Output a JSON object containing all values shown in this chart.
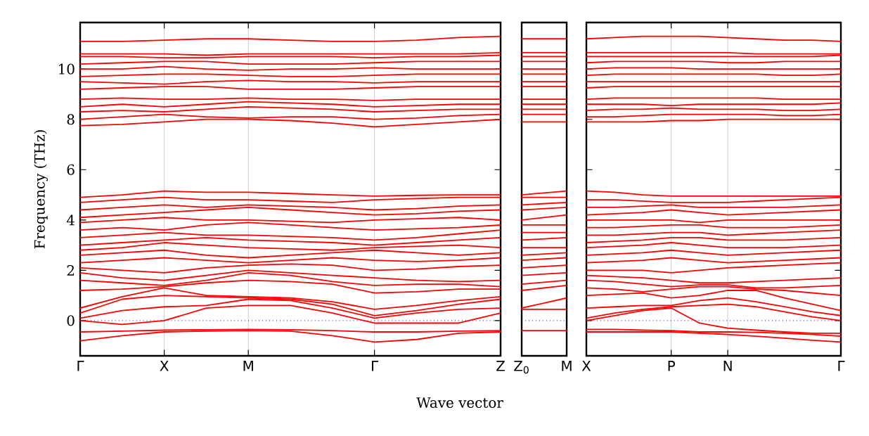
{
  "chart_data": [
    {
      "type": "line",
      "color": "#ff0000",
      "ylabel": "Frequency (THz)",
      "xlabel": "Wave vector",
      "grid": "x",
      "ylim": [
        -1.4,
        11.85
      ],
      "yticks": [
        0,
        2,
        4,
        6,
        8,
        10
      ],
      "categories": [
        "Γ",
        null,
        "X",
        null,
        "M",
        null,
        null,
        "Γ",
        null,
        null,
        "Z"
      ],
      "ref_lines": [
        {
          "axis": "y",
          "value": 0,
          "color": "#0000ff",
          "line_style": "dotted"
        }
      ],
      "series": [
        {
          "values": [
            -0.8,
            -0.6,
            -0.45,
            -0.42,
            -0.4,
            -0.42,
            -0.6,
            -0.85,
            -0.75,
            -0.5,
            -0.45
          ]
        },
        {
          "values": [
            -0.45,
            -0.42,
            -0.38,
            -0.36,
            -0.35,
            -0.36,
            -0.4,
            -0.45,
            -0.45,
            -0.42,
            -0.4
          ]
        },
        {
          "values": [
            0,
            -0.15,
            0,
            0.5,
            0.6,
            0.6,
            0.3,
            -0.1,
            -0.1,
            -0.1,
            0.3
          ]
        },
        {
          "values": [
            0.1,
            0.4,
            0.55,
            0.6,
            0.85,
            0.8,
            0.5,
            0.1,
            0.3,
            0.45,
            0.5
          ]
        },
        {
          "values": [
            0.3,
            0.85,
            1.0,
            0.95,
            0.9,
            0.85,
            0.65,
            0.2,
            0.4,
            0.65,
            0.85
          ]
        },
        {
          "values": [
            0.5,
            0.95,
            1.3,
            1.0,
            0.95,
            0.9,
            0.75,
            0.45,
            0.6,
            0.8,
            0.95
          ]
        },
        {
          "values": [
            1.2,
            1.25,
            1.35,
            1.5,
            1.6,
            1.55,
            1.45,
            1.1,
            1.15,
            1.25,
            1.25
          ]
        },
        {
          "values": [
            1.6,
            1.5,
            1.4,
            1.6,
            1.9,
            1.8,
            1.55,
            1.4,
            1.45,
            1.45,
            1.35
          ]
        },
        {
          "values": [
            1.9,
            1.7,
            1.6,
            1.8,
            2.0,
            1.9,
            1.8,
            1.7,
            1.6,
            1.55,
            1.6
          ]
        },
        {
          "values": [
            2.1,
            2.0,
            1.9,
            2.1,
            2.2,
            2.25,
            2.2,
            2.0,
            2.05,
            2.15,
            2.2
          ]
        },
        {
          "values": [
            2.3,
            2.4,
            2.5,
            2.4,
            2.3,
            2.4,
            2.5,
            2.4,
            2.35,
            2.4,
            2.5
          ]
        },
        {
          "values": [
            2.6,
            2.7,
            2.8,
            2.6,
            2.5,
            2.6,
            2.7,
            2.8,
            2.7,
            2.6,
            2.7
          ]
        },
        {
          "values": [
            2.8,
            2.9,
            3.1,
            3.0,
            2.9,
            2.85,
            2.8,
            2.9,
            2.95,
            3.0,
            2.9
          ]
        },
        {
          "values": [
            3.0,
            3.1,
            3.2,
            3.3,
            3.2,
            3.15,
            3.1,
            3.0,
            3.1,
            3.2,
            3.3
          ]
        },
        {
          "values": [
            3.3,
            3.4,
            3.5,
            3.4,
            3.4,
            3.35,
            3.3,
            3.2,
            3.3,
            3.45,
            3.6
          ]
        },
        {
          "values": [
            3.6,
            3.7,
            3.6,
            3.8,
            3.9,
            3.8,
            3.7,
            3.6,
            3.65,
            3.7,
            3.8
          ]
        },
        {
          "values": [
            3.9,
            4.0,
            4.1,
            4.0,
            4.0,
            3.95,
            3.9,
            4.0,
            4.05,
            4.1,
            4.0
          ]
        },
        {
          "values": [
            4.1,
            4.2,
            4.3,
            4.4,
            4.5,
            4.4,
            4.3,
            4.2,
            4.25,
            4.35,
            4.4
          ]
        },
        {
          "values": [
            4.4,
            4.5,
            4.6,
            4.5,
            4.6,
            4.55,
            4.5,
            4.4,
            4.45,
            4.55,
            4.6
          ]
        },
        {
          "values": [
            4.7,
            4.8,
            4.9,
            4.8,
            4.8,
            4.75,
            4.7,
            4.8,
            4.85,
            4.9,
            4.9
          ]
        },
        {
          "values": [
            4.9,
            5.0,
            5.15,
            5.1,
            5.1,
            5.05,
            5.0,
            4.95,
            4.98,
            5.0,
            5.0
          ]
        },
        {
          "values": [
            7.75,
            7.8,
            7.9,
            8.0,
            8.0,
            7.95,
            7.85,
            7.7,
            7.8,
            7.9,
            8.0
          ]
        },
        {
          "values": [
            8.0,
            8.1,
            8.2,
            8.1,
            8.05,
            8.1,
            8.1,
            8.0,
            8.05,
            8.15,
            8.2
          ]
        },
        {
          "values": [
            8.3,
            8.35,
            8.3,
            8.4,
            8.5,
            8.45,
            8.4,
            8.3,
            8.35,
            8.4,
            8.4
          ]
        },
        {
          "values": [
            8.5,
            8.6,
            8.5,
            8.6,
            8.7,
            8.65,
            8.6,
            8.5,
            8.55,
            8.6,
            8.6
          ]
        },
        {
          "values": [
            8.8,
            8.85,
            8.8,
            8.8,
            8.85,
            8.8,
            8.8,
            8.75,
            8.8,
            8.8,
            8.8
          ]
        },
        {
          "values": [
            9.2,
            9.25,
            9.3,
            9.3,
            9.2,
            9.2,
            9.2,
            9.25,
            9.3,
            9.3,
            9.3
          ]
        },
        {
          "values": [
            9.5,
            9.45,
            9.4,
            9.5,
            9.55,
            9.5,
            9.5,
            9.45,
            9.5,
            9.5,
            9.5
          ]
        },
        {
          "values": [
            9.7,
            9.75,
            9.8,
            9.8,
            9.75,
            9.7,
            9.7,
            9.75,
            9.8,
            9.8,
            9.8
          ]
        },
        {
          "values": [
            10.0,
            10.0,
            10.1,
            10.0,
            9.95,
            10.0,
            10.0,
            10.05,
            10.0,
            10.0,
            10.0
          ]
        },
        {
          "values": [
            10.2,
            10.25,
            10.3,
            10.3,
            10.2,
            10.2,
            10.2,
            10.25,
            10.3,
            10.3,
            10.3
          ]
        },
        {
          "values": [
            10.5,
            10.5,
            10.45,
            10.45,
            10.5,
            10.5,
            10.5,
            10.45,
            10.5,
            10.5,
            10.55
          ]
        },
        {
          "values": [
            10.6,
            10.6,
            10.6,
            10.55,
            10.6,
            10.6,
            10.6,
            10.6,
            10.6,
            10.6,
            10.65
          ]
        },
        {
          "values": [
            11.1,
            11.1,
            11.15,
            11.2,
            11.2,
            11.15,
            11.1,
            11.1,
            11.15,
            11.25,
            11.3
          ]
        }
      ]
    },
    {
      "type": "line",
      "color": "#ff0000",
      "tick_labels": "x",
      "ylim": [
        -1.4,
        11.85
      ],
      "categories": [
        "Z$_{0}$",
        "M"
      ],
      "ref_lines": [
        {
          "axis": "y",
          "value": 0,
          "color": "#0000ff",
          "line_style": "dotted"
        }
      ],
      "series": [
        {
          "values": [
            -0.4,
            -0.4
          ]
        },
        {
          "values": [
            0.45,
            0.45
          ]
        },
        {
          "values": [
            0.5,
            0.9
          ]
        },
        {
          "values": [
            1.2,
            1.4
          ]
        },
        {
          "values": [
            1.45,
            1.6
          ]
        },
        {
          "values": [
            1.8,
            1.9
          ]
        },
        {
          "values": [
            2.1,
            2.2
          ]
        },
        {
          "values": [
            2.4,
            2.5
          ]
        },
        {
          "values": [
            2.6,
            2.7
          ]
        },
        {
          "values": [
            2.9,
            2.9
          ]
        },
        {
          "values": [
            3.2,
            3.3
          ]
        },
        {
          "values": [
            3.5,
            3.5
          ]
        },
        {
          "values": [
            3.8,
            3.8
          ]
        },
        {
          "values": [
            4.0,
            4.2
          ]
        },
        {
          "values": [
            4.4,
            4.5
          ]
        },
        {
          "values": [
            4.6,
            4.7
          ]
        },
        {
          "values": [
            4.9,
            4.9
          ]
        },
        {
          "values": [
            5.0,
            5.15
          ]
        },
        {
          "values": [
            7.9,
            7.9
          ]
        },
        {
          "values": [
            8.2,
            8.2
          ]
        },
        {
          "values": [
            8.4,
            8.4
          ]
        },
        {
          "values": [
            8.6,
            8.6
          ]
        },
        {
          "values": [
            8.8,
            8.8
          ]
        },
        {
          "values": [
            9.3,
            9.3
          ]
        },
        {
          "values": [
            9.5,
            9.5
          ]
        },
        {
          "values": [
            9.8,
            9.8
          ]
        },
        {
          "values": [
            10.0,
            10.0
          ]
        },
        {
          "values": [
            10.3,
            10.3
          ]
        },
        {
          "values": [
            10.5,
            10.5
          ]
        },
        {
          "values": [
            10.65,
            10.65
          ]
        },
        {
          "values": [
            11.2,
            11.2
          ]
        }
      ]
    },
    {
      "type": "line",
      "color": "#ff0000",
      "grid": "x",
      "tick_labels": "x",
      "ylim": [
        -1.4,
        11.85
      ],
      "yticks": [
        0,
        2,
        4,
        6,
        8,
        10
      ],
      "categories": [
        "X",
        null,
        null,
        "P",
        null,
        "N",
        null,
        null,
        null,
        "Γ"
      ],
      "ref_lines": [
        {
          "axis": "y",
          "value": 0,
          "color": "#0000ff",
          "line_style": "dotted"
        }
      ],
      "series": [
        {
          "values": [
            -0.45,
            -0.45,
            -0.45,
            -0.45,
            -0.5,
            -0.55,
            -0.62,
            -0.7,
            -0.78,
            -0.85
          ]
        },
        {
          "values": [
            -0.35,
            -0.35,
            -0.38,
            -0.4,
            -0.45,
            -0.45,
            -0.47,
            -0.5,
            -0.55,
            -0.62
          ]
        },
        {
          "values": [
            0,
            0.2,
            0.4,
            0.5,
            -0.1,
            -0.3,
            -0.38,
            -0.45,
            -0.5,
            -0.5
          ]
        },
        {
          "values": [
            0.1,
            0.3,
            0.45,
            0.55,
            0.6,
            0.65,
            0.55,
            0.35,
            0.15,
            0
          ]
        },
        {
          "values": [
            0.5,
            0.55,
            0.6,
            0.6,
            0.8,
            0.9,
            0.75,
            0.55,
            0.35,
            0.2
          ]
        },
        {
          "values": [
            1.0,
            1.05,
            1.1,
            0.9,
            1.0,
            1.2,
            1.2,
            0.9,
            0.65,
            0.4
          ]
        },
        {
          "values": [
            1.3,
            1.25,
            1.15,
            1.25,
            1.35,
            1.35,
            1.25,
            1.2,
            1.1,
            1.0
          ]
        },
        {
          "values": [
            1.6,
            1.55,
            1.45,
            1.35,
            1.42,
            1.42,
            1.3,
            1.3,
            1.35,
            1.4
          ]
        },
        {
          "values": [
            1.8,
            1.75,
            1.7,
            1.6,
            1.5,
            1.5,
            1.55,
            1.6,
            1.65,
            1.7
          ]
        },
        {
          "values": [
            2.0,
            2.0,
            2.0,
            1.9,
            2.0,
            2.1,
            2.15,
            2.2,
            2.25,
            2.3
          ]
        },
        {
          "values": [
            2.3,
            2.35,
            2.4,
            2.5,
            2.4,
            2.3,
            2.35,
            2.4,
            2.45,
            2.5
          ]
        },
        {
          "values": [
            2.6,
            2.65,
            2.7,
            2.8,
            2.7,
            2.6,
            2.65,
            2.7,
            2.75,
            2.8
          ]
        },
        {
          "values": [
            2.9,
            2.95,
            3.0,
            3.1,
            3.0,
            2.9,
            2.9,
            2.9,
            2.95,
            3.0
          ]
        },
        {
          "values": [
            3.1,
            3.15,
            3.2,
            3.3,
            3.3,
            3.2,
            3.2,
            3.2,
            3.25,
            3.3
          ]
        },
        {
          "values": [
            3.4,
            3.4,
            3.45,
            3.5,
            3.5,
            3.4,
            3.45,
            3.5,
            3.55,
            3.6
          ]
        },
        {
          "values": [
            3.7,
            3.7,
            3.75,
            3.8,
            3.8,
            3.7,
            3.7,
            3.7,
            3.75,
            3.8
          ]
        },
        {
          "values": [
            4.0,
            4.0,
            4.0,
            4.0,
            3.9,
            4.0,
            4.0,
            4.0,
            4.0,
            4.0
          ]
        },
        {
          "values": [
            4.2,
            4.25,
            4.3,
            4.4,
            4.3,
            4.2,
            4.25,
            4.3,
            4.35,
            4.4
          ]
        },
        {
          "values": [
            4.5,
            4.5,
            4.55,
            4.6,
            4.5,
            4.5,
            4.5,
            4.5,
            4.55,
            4.6
          ]
        },
        {
          "values": [
            4.8,
            4.8,
            4.75,
            4.7,
            4.7,
            4.7,
            4.75,
            4.8,
            4.85,
            4.9
          ]
        },
        {
          "values": [
            5.15,
            5.1,
            5.0,
            4.95,
            4.95,
            4.95,
            4.95,
            4.95,
            4.95,
            4.95
          ]
        },
        {
          "values": [
            7.9,
            7.9,
            7.9,
            7.95,
            7.95,
            8.0,
            8.0,
            8.0,
            8.0,
            8.0
          ]
        },
        {
          "values": [
            8.1,
            8.1,
            8.15,
            8.2,
            8.2,
            8.2,
            8.2,
            8.15,
            8.15,
            8.2
          ]
        },
        {
          "values": [
            8.35,
            8.4,
            8.4,
            8.45,
            8.4,
            8.4,
            8.4,
            8.35,
            8.35,
            8.4
          ]
        },
        {
          "values": [
            8.6,
            8.6,
            8.6,
            8.55,
            8.6,
            8.6,
            8.6,
            8.6,
            8.6,
            8.65
          ]
        },
        {
          "values": [
            8.8,
            8.85,
            8.85,
            8.85,
            8.85,
            8.85,
            8.85,
            8.8,
            8.8,
            8.8
          ]
        },
        {
          "values": [
            9.25,
            9.3,
            9.3,
            9.3,
            9.3,
            9.3,
            9.3,
            9.3,
            9.3,
            9.3
          ]
        },
        {
          "values": [
            9.5,
            9.5,
            9.5,
            9.5,
            9.5,
            9.5,
            9.5,
            9.5,
            9.5,
            9.5
          ]
        },
        {
          "values": [
            9.75,
            9.8,
            9.8,
            9.8,
            9.8,
            9.8,
            9.8,
            9.75,
            9.75,
            9.8
          ]
        },
        {
          "values": [
            10.0,
            10.05,
            10.05,
            10.05,
            10.0,
            10.0,
            10.0,
            10.0,
            10.0,
            10.0
          ]
        },
        {
          "values": [
            10.25,
            10.3,
            10.3,
            10.3,
            10.3,
            10.25,
            10.25,
            10.3,
            10.3,
            10.3
          ]
        },
        {
          "values": [
            10.5,
            10.5,
            10.5,
            10.5,
            10.5,
            10.5,
            10.5,
            10.5,
            10.5,
            10.55
          ]
        },
        {
          "values": [
            10.65,
            10.65,
            10.65,
            10.65,
            10.65,
            10.65,
            10.6,
            10.6,
            10.6,
            10.6
          ]
        },
        {
          "values": [
            11.2,
            11.25,
            11.3,
            11.3,
            11.3,
            11.25,
            11.2,
            11.15,
            11.15,
            11.1
          ]
        }
      ]
    }
  ]
}
